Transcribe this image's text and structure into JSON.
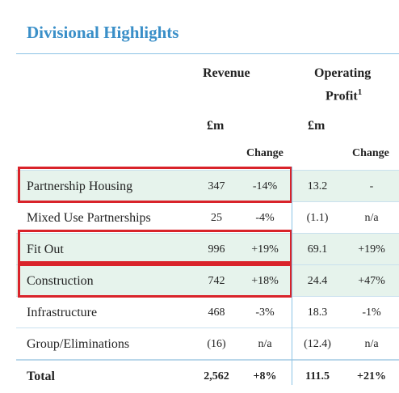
{
  "title": "Divisional Highlights",
  "columns": {
    "revenue": "Revenue",
    "operating": "Operating",
    "profit": "Profit",
    "footnote": "1",
    "unit_revenue": "£m",
    "unit_profit": "£m",
    "change_revenue": "Change",
    "change_profit": "Change"
  },
  "table": {
    "rows": [
      {
        "label": "Partnership Housing",
        "revenue": "347",
        "revenue_change": "-14%",
        "profit": "13.2",
        "profit_change": "-",
        "highlighted": true
      },
      {
        "label": "Mixed Use Partnerships",
        "revenue": "25",
        "revenue_change": "-4%",
        "profit": "(1.1)",
        "profit_change": "n/a",
        "highlighted": false
      },
      {
        "label": "Fit Out",
        "revenue": "996",
        "revenue_change": "+19%",
        "profit": "69.1",
        "profit_change": "+19%",
        "highlighted": true
      },
      {
        "label": "Construction",
        "revenue": "742",
        "revenue_change": "+18%",
        "profit": "24.4",
        "profit_change": "+47%",
        "highlighted": true
      },
      {
        "label": "Infrastructure",
        "revenue": "468",
        "revenue_change": "-3%",
        "profit": "18.3",
        "profit_change": "-1%",
        "highlighted": false
      },
      {
        "label": "Group/Eliminations",
        "revenue": "(16)",
        "revenue_change": "n/a",
        "profit": "(12.4)",
        "profit_change": "n/a",
        "highlighted": false
      },
      {
        "label": "Total",
        "revenue": "2,562",
        "revenue_change": "+8%",
        "profit": "111.5",
        "profit_change": "+21%",
        "highlighted": false
      }
    ]
  }
}
